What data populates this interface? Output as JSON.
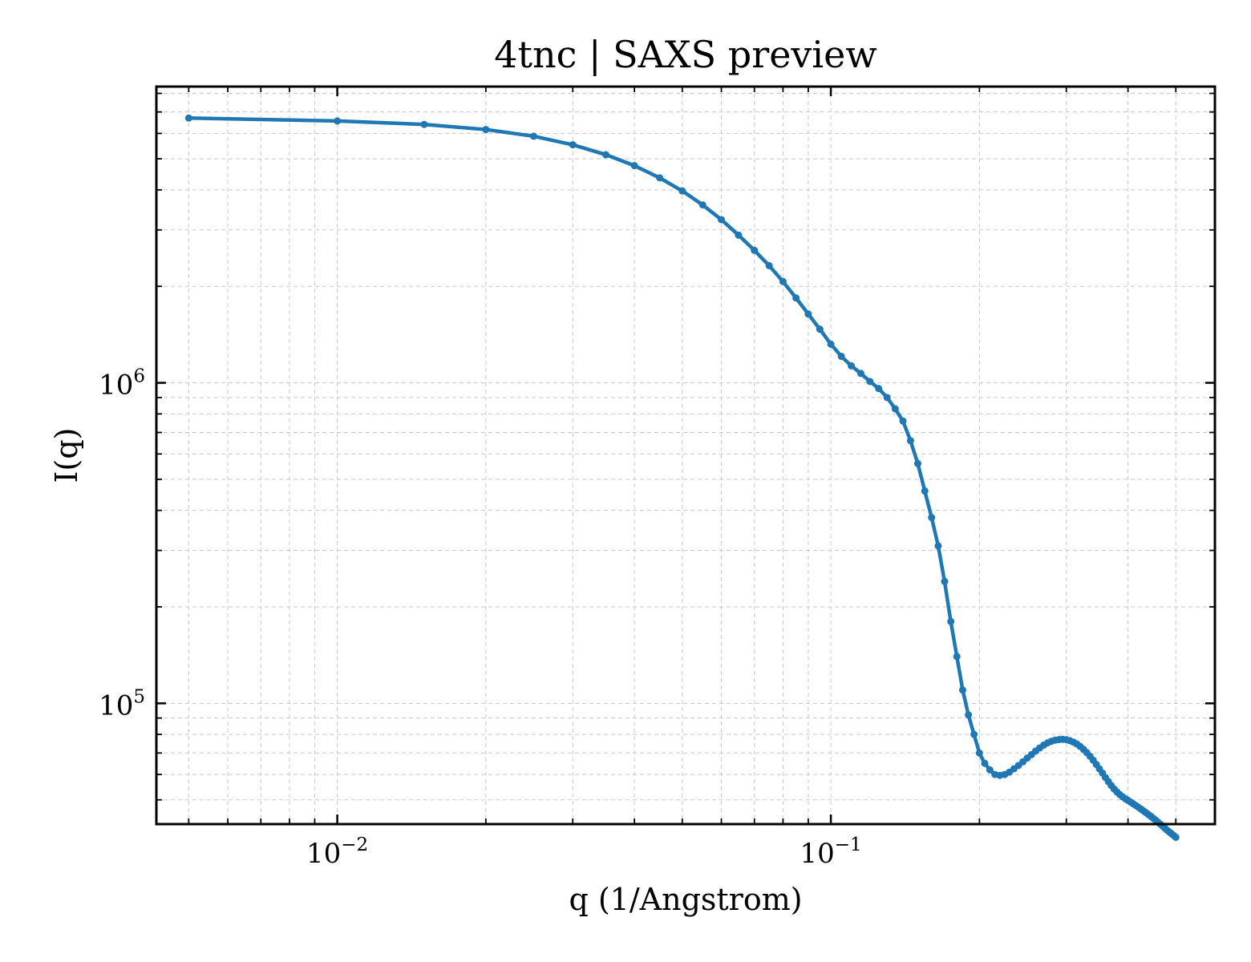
{
  "chart_data": {
    "type": "line",
    "title": "4tnc | SAXS preview",
    "xlabel": "q (1/Angstrom)",
    "ylabel": "I(q)",
    "xscale": "log",
    "yscale": "log",
    "xlim": [
      0.0043,
      0.6
    ],
    "ylim": [
      42000,
      8400000
    ],
    "grid": true,
    "color": "#1f77b4",
    "x_ticks": [
      {
        "base": "10",
        "exp": "−2",
        "value": 0.01
      },
      {
        "base": "10",
        "exp": "−1",
        "value": 0.1
      }
    ],
    "y_ticks": [
      {
        "base": "10",
        "exp": "5",
        "value": 100000
      },
      {
        "base": "10",
        "exp": "6",
        "value": 1000000
      }
    ],
    "series": [
      {
        "x": [
          0.005,
          0.01,
          0.015,
          0.02,
          0.025,
          0.03,
          0.035,
          0.04,
          0.045,
          0.05,
          0.055,
          0.06,
          0.065,
          0.07,
          0.075,
          0.08,
          0.085,
          0.09,
          0.095,
          0.1,
          0.105,
          0.11,
          0.115,
          0.12,
          0.125,
          0.13,
          0.135,
          0.14,
          0.145,
          0.15,
          0.155,
          0.16,
          0.165,
          0.17,
          0.175,
          0.18,
          0.185,
          0.19,
          0.195,
          0.2,
          0.205,
          0.21,
          0.215,
          0.22,
          0.225,
          0.23,
          0.235,
          0.24,
          0.245,
          0.25,
          0.255,
          0.26,
          0.265,
          0.27,
          0.275,
          0.28,
          0.285,
          0.29,
          0.295,
          0.3,
          0.305,
          0.31,
          0.315,
          0.32,
          0.325,
          0.33,
          0.335,
          0.34,
          0.345,
          0.35,
          0.355,
          0.36,
          0.365,
          0.37,
          0.375,
          0.38,
          0.385,
          0.39,
          0.395,
          0.4,
          0.405,
          0.41,
          0.415,
          0.42,
          0.425,
          0.43,
          0.435,
          0.44,
          0.445,
          0.45,
          0.455,
          0.46,
          0.465,
          0.47,
          0.475,
          0.48,
          0.485,
          0.49,
          0.495,
          0.5
        ],
        "y": [
          6700000,
          6560000,
          6400000,
          6170000,
          5880000,
          5530000,
          5150000,
          4760000,
          4360000,
          3970000,
          3590000,
          3230000,
          2890000,
          2590000,
          2320000,
          2070000,
          1840000,
          1640000,
          1470000,
          1320000,
          1210000,
          1130000,
          1070000,
          1010000,
          960000,
          900000,
          830000,
          760000,
          660000,
          560000,
          460000,
          380000,
          310000,
          240000,
          180000,
          140000,
          110000,
          92000,
          80000,
          70000,
          65000,
          62000,
          60000,
          59600,
          60000,
          61000,
          62500,
          64000,
          65700,
          67500,
          69200,
          71000,
          72600,
          74100,
          75300,
          76200,
          76800,
          77100,
          77200,
          77000,
          76500,
          75700,
          74700,
          73400,
          71900,
          70200,
          68400,
          66500,
          64500,
          62500,
          60600,
          58700,
          57000,
          55400,
          54000,
          52900,
          51900,
          51100,
          50400,
          49800,
          49200,
          48600,
          48000,
          47400,
          46800,
          46200,
          45600,
          45000,
          44400,
          43800,
          43200,
          42600,
          42000,
          41400,
          40800,
          40200,
          39700,
          39200,
          38700,
          38200
        ]
      }
    ]
  }
}
